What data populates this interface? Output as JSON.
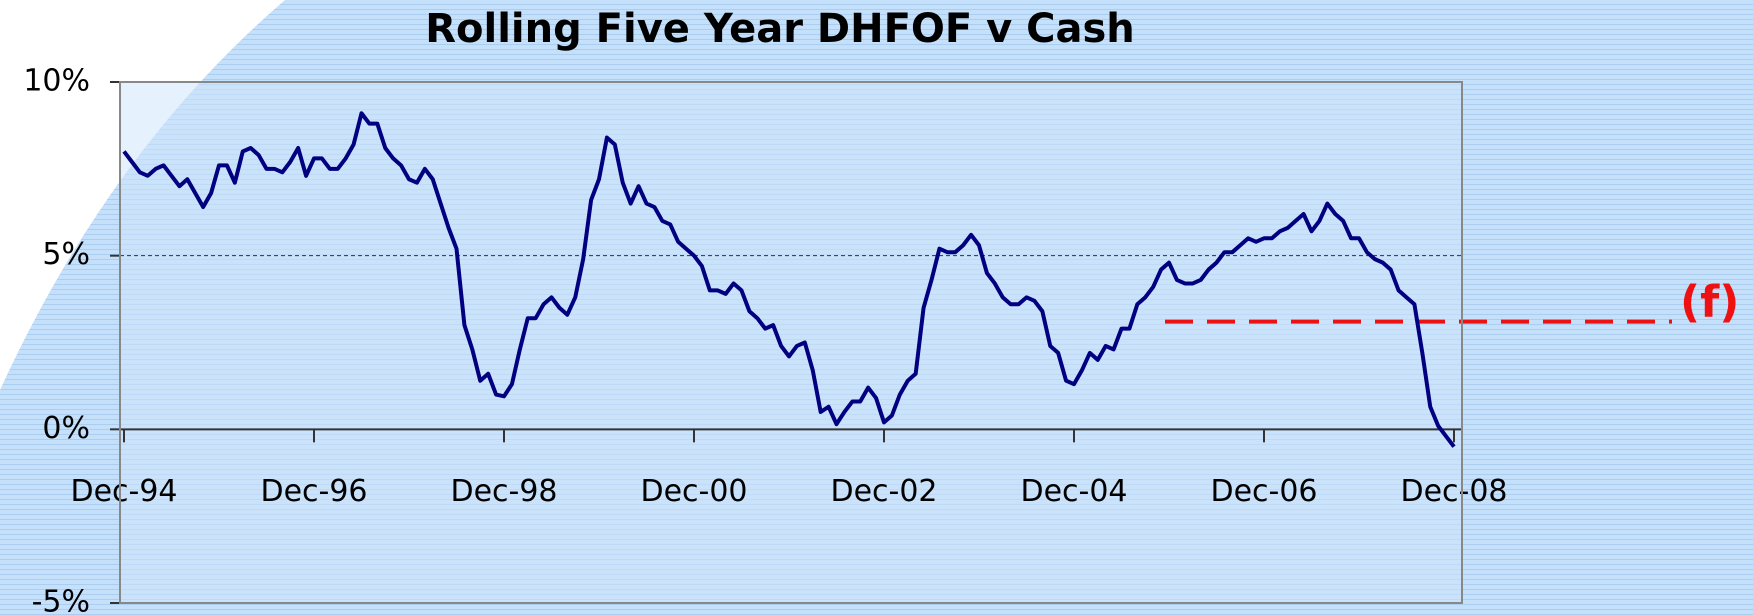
{
  "chart_data": {
    "type": "line",
    "title": "Rolling Five Year DHFOF v Cash",
    "categories": [
      "Dec-94",
      null,
      null,
      null,
      null,
      null,
      null,
      null,
      null,
      null,
      null,
      null,
      null,
      null,
      null,
      null,
      null,
      null,
      null,
      null,
      null,
      null,
      null,
      null,
      "Dec-96",
      null,
      null,
      null,
      null,
      null,
      null,
      null,
      null,
      null,
      null,
      null,
      null,
      null,
      null,
      null,
      null,
      null,
      null,
      null,
      null,
      null,
      null,
      null,
      "Dec-98",
      null,
      null,
      null,
      null,
      null,
      null,
      null,
      null,
      null,
      null,
      null,
      null,
      null,
      null,
      null,
      null,
      null,
      null,
      null,
      null,
      null,
      null,
      null,
      "Dec-00",
      null,
      null,
      null,
      null,
      null,
      null,
      null,
      null,
      null,
      null,
      null,
      null,
      null,
      null,
      null,
      null,
      null,
      null,
      null,
      null,
      null,
      null,
      null,
      "Dec-02",
      null,
      null,
      null,
      null,
      null,
      null,
      null,
      null,
      null,
      null,
      null,
      null,
      null,
      null,
      null,
      null,
      null,
      null,
      null,
      null,
      null,
      null,
      null,
      "Dec-04",
      null,
      null,
      null,
      null,
      null,
      null,
      null,
      null,
      null,
      null,
      null,
      null,
      null,
      null,
      null,
      null,
      null,
      null,
      null,
      null,
      null,
      null,
      null,
      "Dec-06",
      null,
      null,
      null,
      null,
      null,
      null,
      null,
      null,
      null,
      null,
      null,
      null,
      null,
      null,
      null,
      null,
      null,
      null,
      null,
      null,
      null,
      null,
      null,
      "Dec-08"
    ],
    "values": [
      8.0,
      7.7,
      7.4,
      7.3,
      7.5,
      7.6,
      7.3,
      7.0,
      7.2,
      6.8,
      6.4,
      6.8,
      7.6,
      7.6,
      7.1,
      8.0,
      8.1,
      7.9,
      7.5,
      7.5,
      7.4,
      7.7,
      8.1,
      7.3,
      7.8,
      7.8,
      7.5,
      7.5,
      7.8,
      8.2,
      9.1,
      8.8,
      8.8,
      8.1,
      7.8,
      7.6,
      7.2,
      7.1,
      7.5,
      7.2,
      6.5,
      5.8,
      5.2,
      3.0,
      2.3,
      1.4,
      1.6,
      1.0,
      0.95,
      1.3,
      2.3,
      3.2,
      3.2,
      3.6,
      3.8,
      3.5,
      3.3,
      3.8,
      4.9,
      6.6,
      7.2,
      8.4,
      8.2,
      7.1,
      6.5,
      7.0,
      6.5,
      6.4,
      6.0,
      5.9,
      5.4,
      5.2,
      5.0,
      4.7,
      4.0,
      4.0,
      3.9,
      4.2,
      4.0,
      3.4,
      3.2,
      2.9,
      3.0,
      2.4,
      2.1,
      2.4,
      2.5,
      1.7,
      0.5,
      0.65,
      0.15,
      0.5,
      0.8,
      0.8,
      1.2,
      0.9,
      0.2,
      0.4,
      1.0,
      1.4,
      1.6,
      3.5,
      4.3,
      5.2,
      5.1,
      5.1,
      5.3,
      5.6,
      5.3,
      4.5,
      4.2,
      3.8,
      3.6,
      3.6,
      3.8,
      3.7,
      3.4,
      2.4,
      2.2,
      1.4,
      1.3,
      1.7,
      2.2,
      2.0,
      2.4,
      2.3,
      2.9,
      2.9,
      3.6,
      3.8,
      4.1,
      4.6,
      4.8,
      4.3,
      4.2,
      4.2,
      4.3,
      4.6,
      4.8,
      5.1,
      5.1,
      5.3,
      5.5,
      5.4,
      5.5,
      5.5,
      5.7,
      5.8,
      6.0,
      6.2,
      5.7,
      6.0,
      6.5,
      6.2,
      6.0,
      5.5,
      5.5,
      5.1,
      4.9,
      4.8,
      4.6,
      4.0,
      3.8,
      3.6,
      2.2,
      0.65,
      0.1,
      -0.2,
      -0.5
    ],
    "color": "#000080",
    "ylim": [
      -5,
      10
    ],
    "yticks": [
      {
        "value": -5,
        "label": "-5%"
      },
      {
        "value": 0,
        "label": "0%"
      },
      {
        "value": 5,
        "label": "5%"
      },
      {
        "value": 10,
        "label": "10%"
      }
    ],
    "grid": true,
    "reference_line": {
      "value": 3.1,
      "label": "(f)",
      "color": "#ee1111"
    }
  }
}
